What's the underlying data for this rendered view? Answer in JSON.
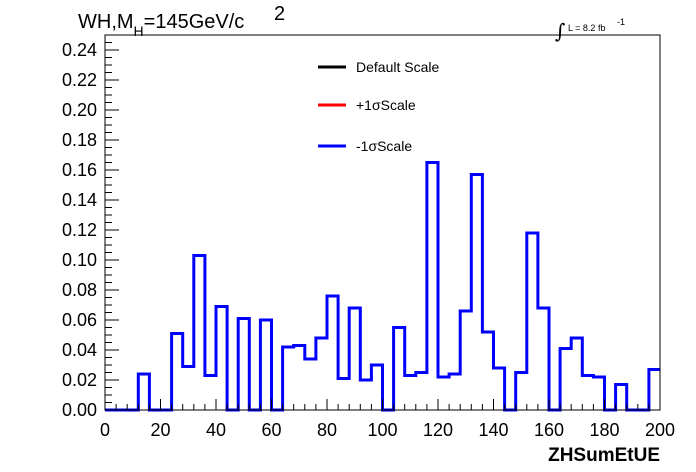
{
  "chart_data": {
    "type": "line",
    "step": true,
    "title": "WH,M",
    "title_subscript": "H",
    "title_rest": "=145GeV/c",
    "title_superscript": "2",
    "lumi_label": "L = 8.2 fb",
    "lumi_superscript": "-1",
    "xlabel": "ZHSumEtUE",
    "ylabel": "",
    "xlim": [
      0,
      200
    ],
    "ylim": [
      0,
      0.25
    ],
    "x_ticks": [
      "0",
      "20",
      "40",
      "60",
      "80",
      "100",
      "120",
      "140",
      "160",
      "180",
      "200"
    ],
    "y_ticks": [
      "0.00",
      "0.02",
      "0.04",
      "0.06",
      "0.08",
      "0.10",
      "0.12",
      "0.14",
      "0.16",
      "0.18",
      "0.20",
      "0.22",
      "0.24"
    ],
    "legend": {
      "placement": "top-center",
      "entries": [
        {
          "name": "Default Scale",
          "color": "#000000"
        },
        {
          "name": "+1σScale",
          "color": "#ff0000"
        },
        {
          "name": "-1σScale",
          "color": "#0000ff"
        }
      ]
    },
    "bin_width": 4,
    "bin_edges_start": 0,
    "series": [
      {
        "name": "-1σScale",
        "color": "#0000ff",
        "values": [
          0,
          0,
          0,
          0.024,
          0,
          0,
          0.051,
          0.029,
          0.103,
          0.023,
          0.069,
          0,
          0.061,
          0,
          0.06,
          0,
          0.042,
          0.043,
          0.034,
          0.048,
          0.076,
          0.021,
          0.068,
          0.02,
          0.03,
          0,
          0.055,
          0.023,
          0.025,
          0.165,
          0.022,
          0.024,
          0.066,
          0.157,
          0.052,
          0.028,
          0,
          0.025,
          0.118,
          0.068,
          0,
          0.041,
          0.048,
          0.023,
          0.022,
          0,
          0.017,
          0,
          0,
          0.027
        ]
      }
    ]
  }
}
